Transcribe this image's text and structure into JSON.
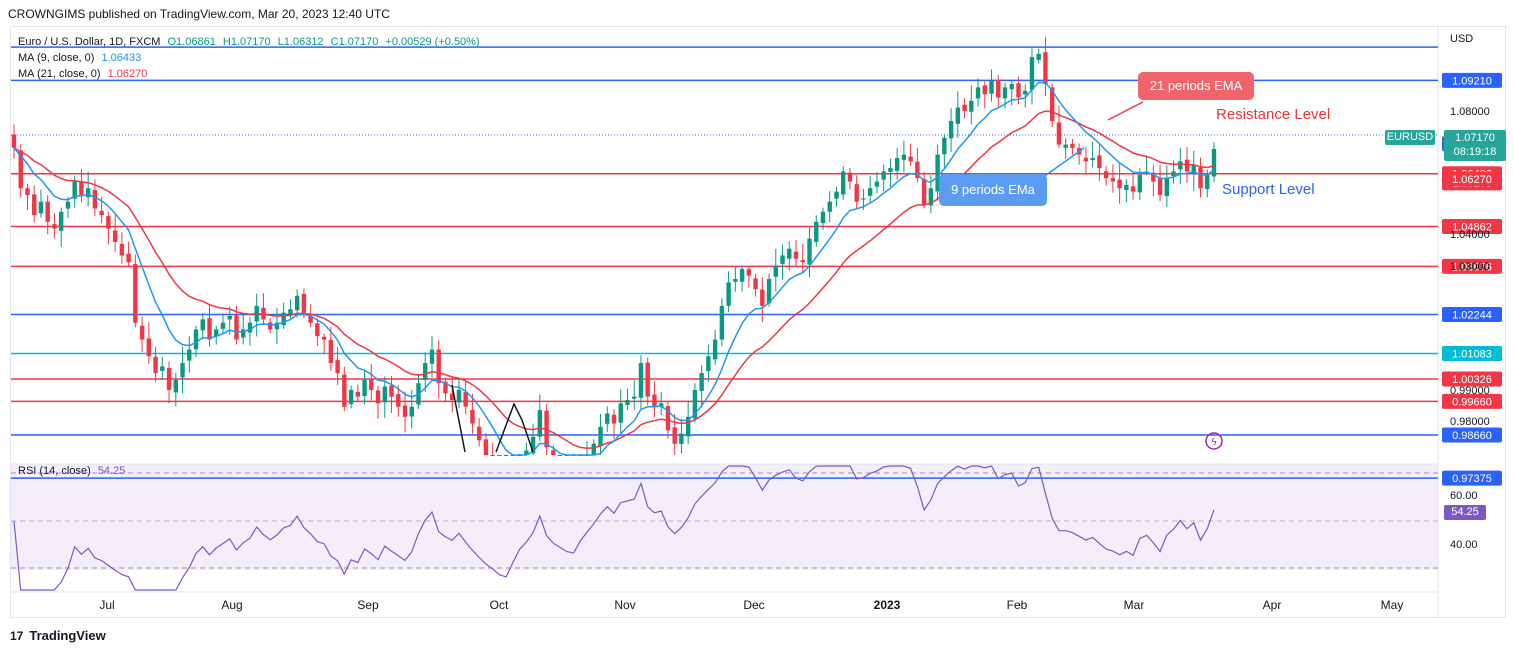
{
  "header": {
    "published": "CROWNGIMS published on TradingView.com, Mar 20, 2023 12:40 UTC"
  },
  "legend": {
    "symbol": "Euro / U.S. Dollar, 1D, FXCM",
    "open": "O1.06861",
    "high": "H1.07170",
    "low": "L1.06312",
    "close": "C1.07170",
    "change": "+0.00529 (+0.50%)",
    "ma9_label": "MA (9, close, 0)",
    "ma9_value": "1.06433",
    "ma21_label": "MA (21, close, 0)",
    "ma21_value": "1.06270",
    "rsi_label": "RSI (14, close)",
    "rsi_value": "54.25"
  },
  "axis": {
    "currency": "USD",
    "price_ticks": [
      "1.08000",
      "1.04000",
      "1.03000",
      "0.99000",
      "0.98000"
    ],
    "rsi_ticks": [
      "60.00",
      "40.00"
    ],
    "time_labels": [
      "Jul",
      "Aug",
      "Sep",
      "Oct",
      "Nov",
      "Dec",
      "2023",
      "Feb",
      "Mar",
      "Apr",
      "May"
    ]
  },
  "symbol_tag": {
    "name": "EURUSD",
    "price": "1.07170",
    "countdown": "08:19:18"
  },
  "annotations": {
    "ema21": "21 periods EMA",
    "ema9": "9 periods EMa",
    "resistance": "Resistance Level",
    "support": "Support Level"
  },
  "footer": {
    "brand": "TradingView"
  },
  "colors": {
    "up": "#089981",
    "down": "#f23645",
    "ma9": "#2196f3",
    "ma21": "#f23645",
    "blue_line": "#2962ff",
    "red_line": "#f23645",
    "teal_line": "#00bcd4",
    "rsi": "#7e57c2"
  },
  "chart_data": {
    "type": "candlestick",
    "ylim": [
      0.97,
      1.1
    ],
    "levels": [
      {
        "price": "1.10200",
        "value": 1.102,
        "color": "blue"
      },
      {
        "price": "1.09210",
        "value": 1.0921,
        "color": "blue"
      },
      {
        "price": "1.06433",
        "value": 1.06433,
        "color": "red"
      },
      {
        "price": "1.04862",
        "value": 1.04862,
        "color": "red"
      },
      {
        "price": "1.03676",
        "value": 1.03676,
        "color": "red"
      },
      {
        "price": "1.02244",
        "value": 1.02244,
        "color": "blue"
      },
      {
        "price": "1.01083",
        "value": 1.01083,
        "color": "teal"
      },
      {
        "price": "1.00326",
        "value": 1.00326,
        "color": "red"
      },
      {
        "price": "0.99660",
        "value": 0.9966,
        "color": "red"
      },
      {
        "price": "0.98660",
        "value": 0.9866,
        "color": "blue"
      },
      {
        "price": "0.97375",
        "value": 0.97375,
        "color": "blue"
      }
    ],
    "right_labels": [
      {
        "text": "1.07325",
        "value": 1.07325,
        "color": "blue"
      },
      {
        "text": "1.06160",
        "value": 1.0616,
        "color": "red"
      },
      {
        "text": "1.06270",
        "value": 1.0627,
        "color": "red"
      }
    ],
    "close": [
      1.072,
      1.06,
      1.058,
      1.052,
      1.056,
      1.05,
      1.048,
      1.053,
      1.056,
      1.062,
      1.058,
      1.06,
      1.054,
      1.052,
      1.048,
      1.044,
      1.04,
      1.038,
      1.02,
      1.015,
      1.01,
      1.005,
      1.007,
      1.0,
      1.003,
      1.008,
      1.012,
      1.018,
      1.021,
      1.015,
      1.018,
      1.02,
      1.022,
      1.015,
      1.018,
      1.02,
      1.025,
      1.021,
      1.018,
      1.02,
      1.023,
      1.024,
      1.028,
      1.023,
      1.02,
      1.016,
      1.015,
      1.008,
      1.005,
      0.995,
      1.0,
      0.998,
      1.003,
      1.0,
      0.996,
      1.001,
      0.998,
      0.995,
      0.992,
      0.995,
      1.002,
      1.008,
      1.012,
      1.002,
      0.999,
      0.997,
      1.0,
      0.995,
      0.99,
      0.985,
      0.98,
      0.976,
      0.971,
      0.969,
      0.974,
      0.979,
      0.982,
      0.986,
      0.994,
      0.983,
      0.978,
      0.975,
      0.972,
      0.971,
      0.976,
      0.98,
      0.984,
      0.989,
      0.993,
      0.99,
      0.996,
      0.997,
      0.998,
      1.008,
      0.998,
      0.995,
      0.996,
      0.988,
      0.984,
      0.987,
      0.992,
      1.0,
      1.005,
      1.01,
      1.015,
      1.025,
      1.032,
      1.033,
      1.036,
      1.034,
      1.03,
      1.025,
      1.033,
      1.037,
      1.04,
      1.042,
      1.039,
      1.038,
      1.045,
      1.05,
      1.053,
      1.056,
      1.059,
      1.065,
      1.062,
      1.056,
      1.057,
      1.06,
      1.062,
      1.065,
      1.066,
      1.069,
      1.07,
      1.068,
      1.063,
      1.055,
      1.06,
      1.07,
      1.075,
      1.08,
      1.084,
      1.083,
      1.086,
      1.09,
      1.088,
      1.092,
      1.087,
      1.09,
      1.091,
      1.087,
      1.089,
      1.099,
      1.1,
      1.091,
      1.08,
      1.073,
      1.073,
      1.072,
      1.07,
      1.068,
      1.069,
      1.066,
      1.063,
      1.062,
      1.06,
      1.061,
      1.059,
      1.064,
      1.065,
      1.062,
      1.058,
      1.063,
      1.065,
      1.068,
      1.065,
      1.067,
      1.06,
      1.064,
      1.0717
    ]
  }
}
